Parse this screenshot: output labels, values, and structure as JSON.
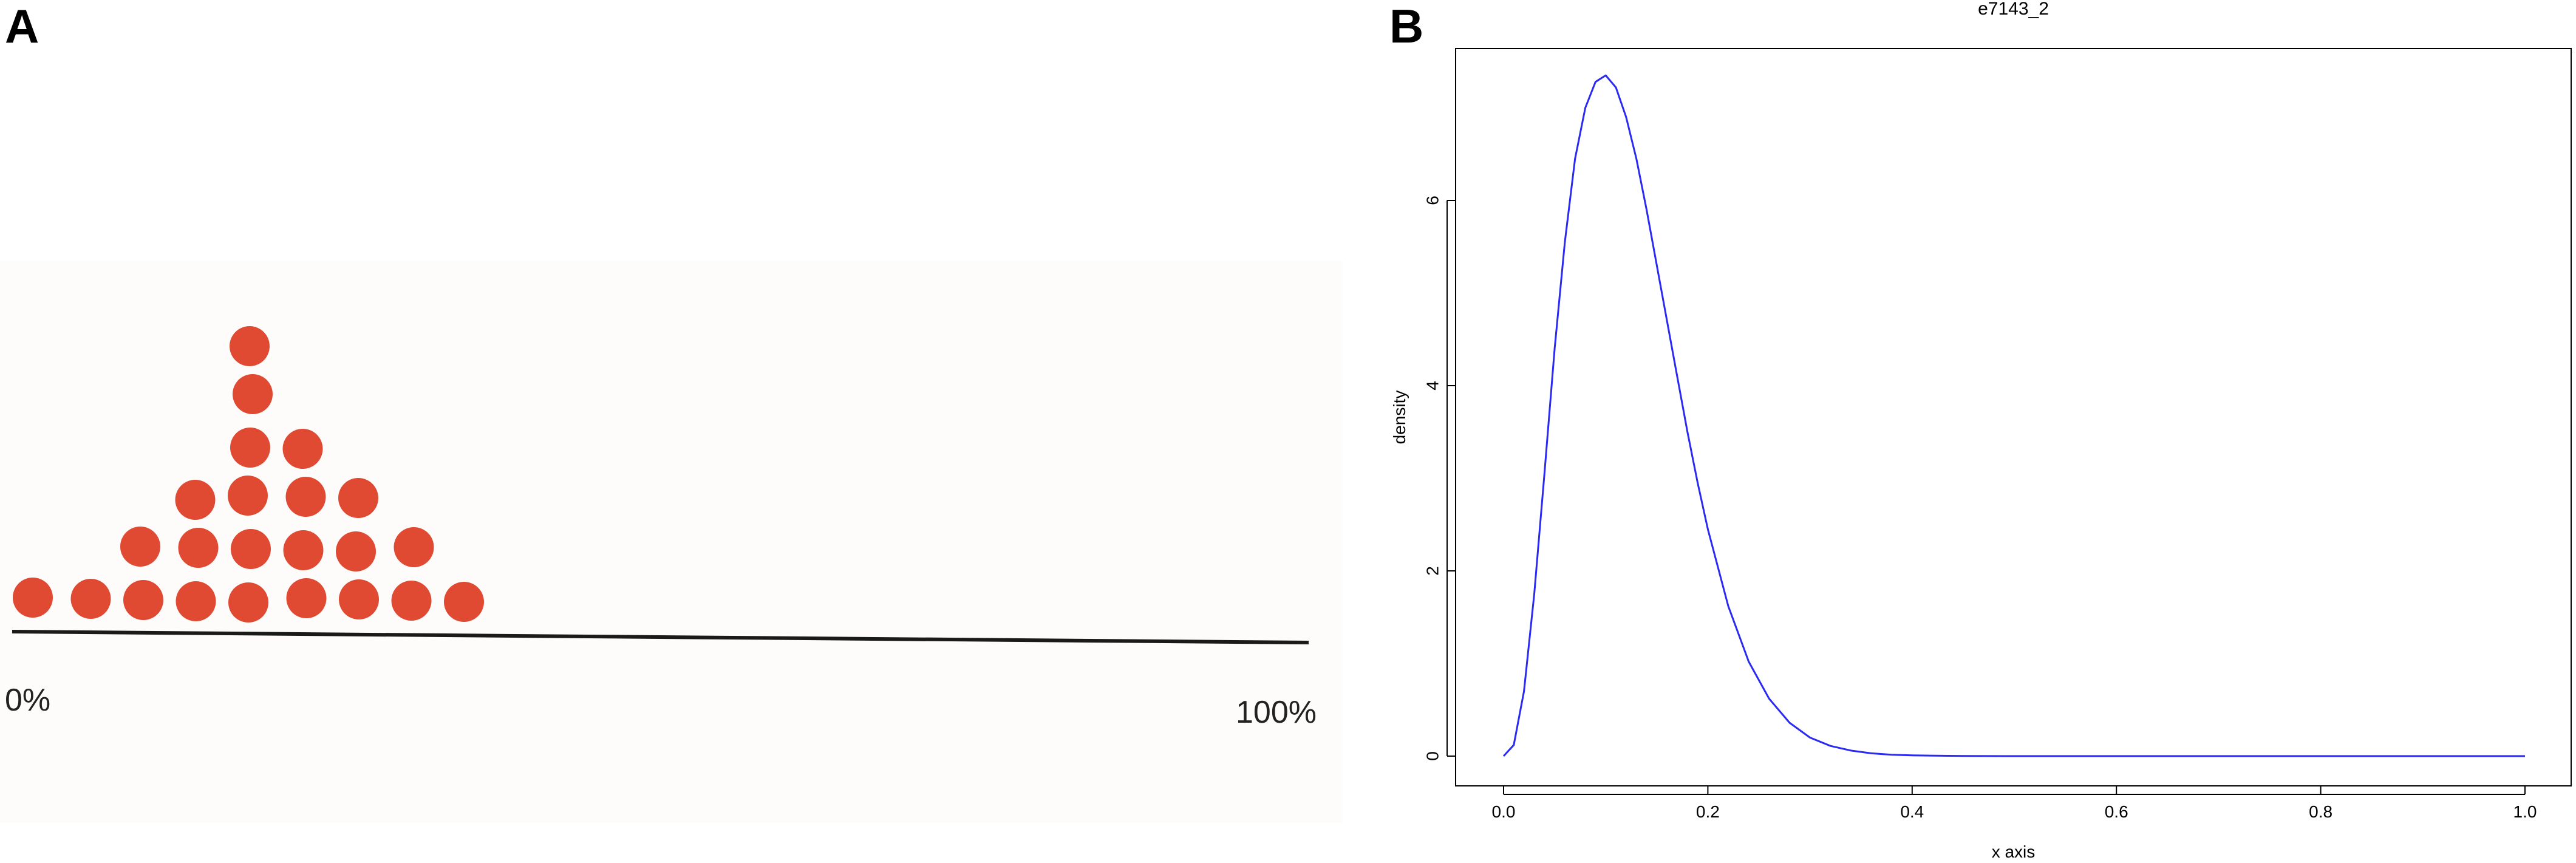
{
  "panels": {
    "a_letter": "A",
    "b_letter": "B"
  },
  "chart_data": [
    {
      "panel": "A",
      "type": "scatter",
      "style": "dot plot",
      "xlabels": [
        "0%",
        "100%"
      ],
      "xlim": [
        0,
        100
      ],
      "column_counts": [
        1,
        1,
        2,
        3,
        6,
        4,
        3,
        2,
        1
      ],
      "dot_color": "#e04a33",
      "axis_color": "#1a1a1a",
      "background": "#fdfcfb"
    },
    {
      "panel": "B",
      "type": "line",
      "title": "e7143_2",
      "xlabel": "x axis",
      "ylabel": "density",
      "xlim": [
        0,
        1
      ],
      "ylim": [
        0,
        7.4
      ],
      "xticks": [
        "0.0",
        "0.2",
        "0.4",
        "0.6",
        "0.8",
        "1.0"
      ],
      "yticks": [
        "0",
        "2",
        "4",
        "6"
      ],
      "line_color": "#2a2af0",
      "series": [
        {
          "x": [
            0.0,
            0.01,
            0.02,
            0.03,
            0.04,
            0.05,
            0.06,
            0.07,
            0.08,
            0.09,
            0.1,
            0.11,
            0.12,
            0.13,
            0.14,
            0.15,
            0.16,
            0.17,
            0.18,
            0.19,
            0.2,
            0.22,
            0.24,
            0.26,
            0.28,
            0.3,
            0.32,
            0.34,
            0.36,
            0.38,
            0.4,
            0.45,
            0.5,
            0.6,
            0.7,
            0.8,
            0.9,
            1.0
          ],
          "values": [
            0.0,
            0.12,
            0.7,
            1.75,
            3.05,
            4.4,
            5.55,
            6.45,
            7.0,
            7.28,
            7.35,
            7.22,
            6.9,
            6.45,
            5.9,
            5.3,
            4.7,
            4.1,
            3.5,
            2.95,
            2.45,
            1.62,
            1.02,
            0.62,
            0.36,
            0.2,
            0.11,
            0.06,
            0.03,
            0.015,
            0.008,
            0.002,
            0.0,
            0.0,
            0.0,
            0.0,
            0.0,
            0.0
          ]
        }
      ],
      "grid": false
    }
  ]
}
